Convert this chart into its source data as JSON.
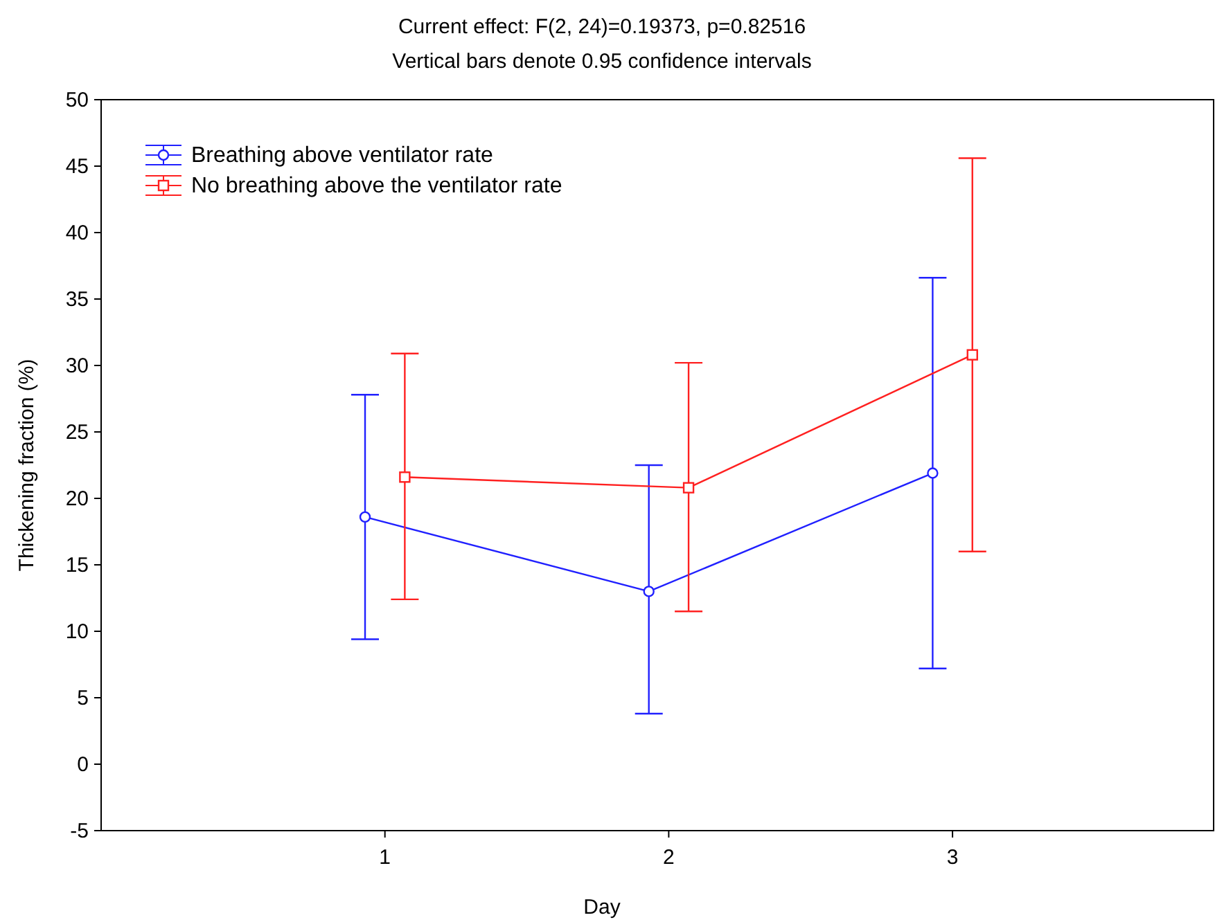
{
  "chart_data": {
    "type": "line",
    "title": "Current effect: F(2, 24)=0.19373, p=0.82516",
    "subtitle": "Vertical bars denote 0.95 confidence intervals",
    "xlabel": "Day",
    "ylabel": "Thickening fraction (%)",
    "xlim": [
      0,
      3.92
    ],
    "xticks": [
      1,
      2,
      3
    ],
    "ylim": [
      -5,
      50
    ],
    "yticks": [
      -5,
      0,
      5,
      10,
      15,
      20,
      25,
      30,
      35,
      40,
      45,
      50
    ],
    "grid": false,
    "legend": "top left",
    "line_style": "solid",
    "series": [
      {
        "name": "Breathing above ventilator rate",
        "color": "#2020ff",
        "marker": "circle",
        "x": [
          0.93,
          1.93,
          2.93
        ],
        "values": [
          18.6,
          13.0,
          21.9
        ],
        "errors": [
          [
            9.4,
            27.8
          ],
          [
            3.8,
            22.5
          ],
          [
            7.2,
            36.6
          ]
        ]
      },
      {
        "name": "No breathing above the ventilator rate",
        "color": "#ff2020",
        "marker": "square",
        "x": [
          1.07,
          2.07,
          3.07
        ],
        "values": [
          21.6,
          20.8,
          30.8
        ],
        "errors": [
          [
            12.4,
            30.9
          ],
          [
            11.5,
            30.2
          ],
          [
            16.0,
            45.6
          ]
        ]
      }
    ]
  }
}
